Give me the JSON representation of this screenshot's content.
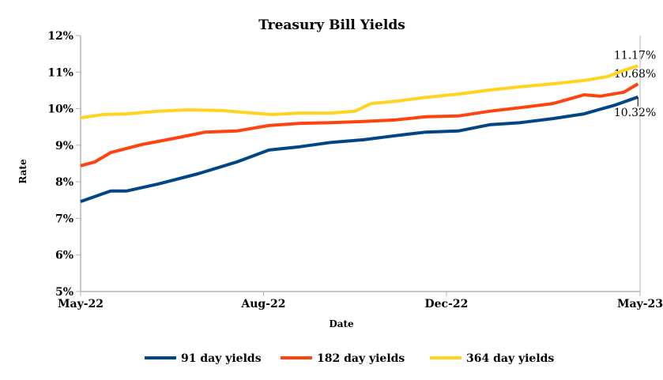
{
  "chart_data": {
    "type": "line",
    "title": "Treasury Bill Yields",
    "xlabel": "Date",
    "ylabel": "Rate",
    "x_unit": "weeks since May-22",
    "xlim": [
      0,
      52
    ],
    "ylim": [
      5,
      12
    ],
    "yticks": [
      5,
      6,
      7,
      8,
      9,
      10,
      11,
      12
    ],
    "ytick_labels": [
      "5%",
      "6%",
      "7%",
      "8%",
      "9%",
      "10%",
      "11%",
      "12%"
    ],
    "xticks": [
      0,
      17,
      34,
      52
    ],
    "xtick_labels": [
      "May-22",
      "Aug-22",
      "Dec-22",
      "May-23"
    ],
    "grid": false,
    "legend_position": "bottom",
    "series": [
      {
        "name": "91 day yields",
        "color": "#004586",
        "x": [
          0,
          2.8,
          4.3,
          7.2,
          10.9,
          14.5,
          17.5,
          20.4,
          23.3,
          26.3,
          29.2,
          32.1,
          35.1,
          38,
          40.9,
          43.9,
          46.8,
          49.7,
          51.8
        ],
        "y": [
          7.46,
          7.75,
          7.75,
          7.94,
          8.22,
          8.54,
          8.87,
          8.96,
          9.08,
          9.15,
          9.26,
          9.36,
          9.39,
          9.56,
          9.62,
          9.73,
          9.86,
          10.1,
          10.32
        ],
        "end_label": "10.32%"
      },
      {
        "name": "182 day yields",
        "color": "#ff420e",
        "x": [
          0,
          1.3,
          2.8,
          5.7,
          8.7,
          11.6,
          14.5,
          17.5,
          20.4,
          23.3,
          26.3,
          29.2,
          32.1,
          35.1,
          38,
          40.9,
          43.9,
          46.8,
          48.3,
          50.5,
          51.8
        ],
        "y": [
          8.44,
          8.54,
          8.8,
          9.02,
          9.19,
          9.36,
          9.39,
          9.54,
          9.6,
          9.62,
          9.65,
          9.69,
          9.78,
          9.8,
          9.93,
          10.03,
          10.14,
          10.38,
          10.34,
          10.45,
          10.68
        ],
        "end_label": "10.68%"
      },
      {
        "name": "364 day yields",
        "color": "#ffd320",
        "x": [
          0,
          2.1,
          4.3,
          7.2,
          10.1,
          13.1,
          16,
          17.8,
          20.4,
          23.3,
          25.5,
          27,
          29.2,
          32.1,
          35.1,
          38,
          40.9,
          43.9,
          46.8,
          49,
          50.5,
          51.8
        ],
        "y": [
          9.75,
          9.84,
          9.86,
          9.93,
          9.97,
          9.95,
          9.88,
          9.84,
          9.88,
          9.88,
          9.93,
          10.14,
          10.2,
          10.31,
          10.4,
          10.51,
          10.6,
          10.68,
          10.77,
          10.88,
          11.05,
          11.17
        ],
        "end_label": "11.17%"
      }
    ]
  }
}
